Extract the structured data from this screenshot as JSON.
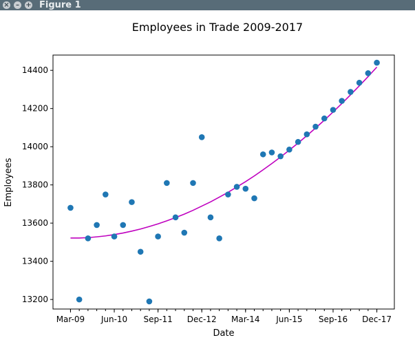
{
  "window": {
    "title": "Figure 1",
    "close_glyph": "×",
    "minimize_glyph": "–",
    "maximize_glyph": "+"
  },
  "chart_data": {
    "type": "scatter",
    "title": "Employees in Trade 2009-2017",
    "xlabel": "Date",
    "ylabel": "Employees",
    "x_tick_labels": [
      "Mar-09",
      "Jun-10",
      "Sep-11",
      "Dec-12",
      "Mar-14",
      "Jun-15",
      "Sep-16",
      "Dec-17"
    ],
    "x_ticks_quarter_index": [
      0,
      5,
      10,
      15,
      20,
      25,
      30,
      35
    ],
    "x_minor_ticks_every_quarters": 1,
    "y_ticks": [
      13200,
      13400,
      13600,
      13800,
      14000,
      14200,
      14400
    ],
    "ylim": [
      13150,
      14480
    ],
    "xlim_quarter_index": [
      -2,
      37
    ],
    "grid": false,
    "series": [
      {
        "kind": "scatter",
        "color": "#1f77b4",
        "x_quarter": [
          "Mar-09",
          "Jun-09",
          "Sep-09",
          "Dec-09",
          "Mar-10",
          "Jun-10",
          "Sep-10",
          "Dec-10",
          "Mar-11",
          "Jun-11",
          "Sep-11",
          "Dec-11",
          "Mar-12",
          "Jun-12",
          "Sep-12",
          "Dec-12",
          "Mar-13",
          "Jun-13",
          "Sep-13",
          "Dec-13",
          "Mar-14",
          "Jun-14",
          "Sep-14",
          "Dec-14",
          "Mar-15",
          "Jun-15",
          "Sep-15",
          "Dec-15",
          "Mar-16",
          "Jun-16",
          "Sep-16",
          "Dec-16",
          "Mar-17",
          "Jun-17",
          "Sep-17",
          "Dec-17"
        ],
        "x_index": [
          0,
          1,
          2,
          3,
          4,
          5,
          6,
          7,
          8,
          9,
          10,
          11,
          12,
          13,
          14,
          15,
          16,
          17,
          18,
          19,
          20,
          21,
          22,
          23,
          24,
          25,
          26,
          27,
          28,
          29,
          30,
          31,
          32,
          33,
          34,
          35
        ],
        "values": [
          13680,
          13200,
          13520,
          13590,
          13750,
          13530,
          13590,
          13710,
          13450,
          13190,
          13530,
          13810,
          13630,
          13550,
          13810,
          14050,
          13630,
          13520,
          13750,
          13790,
          13780,
          13730,
          13960,
          13970,
          13950,
          13985,
          14025,
          14065,
          14105,
          14148,
          14193,
          14240,
          14287,
          14335,
          14385,
          14440
        ]
      },
      {
        "kind": "line",
        "color": "#bf00bf",
        "x_index": [
          0,
          1,
          2,
          3,
          4,
          5,
          6,
          7,
          8,
          9,
          10,
          11,
          12,
          13,
          14,
          15,
          16,
          17,
          18,
          19,
          20,
          21,
          22,
          23,
          24,
          25,
          26,
          27,
          28,
          29,
          30,
          31,
          32,
          33,
          34,
          35
        ],
        "values": [
          13522,
          13522,
          13524,
          13528,
          13533,
          13540,
          13548,
          13558,
          13569,
          13582,
          13596,
          13612,
          13629,
          13647,
          13667,
          13689,
          13711,
          13736,
          13761,
          13789,
          13817,
          13847,
          13879,
          13912,
          13946,
          13982,
          14019,
          14058,
          14098,
          14139,
          14182,
          14226,
          14272,
          14319,
          14367,
          14417
        ]
      }
    ]
  }
}
